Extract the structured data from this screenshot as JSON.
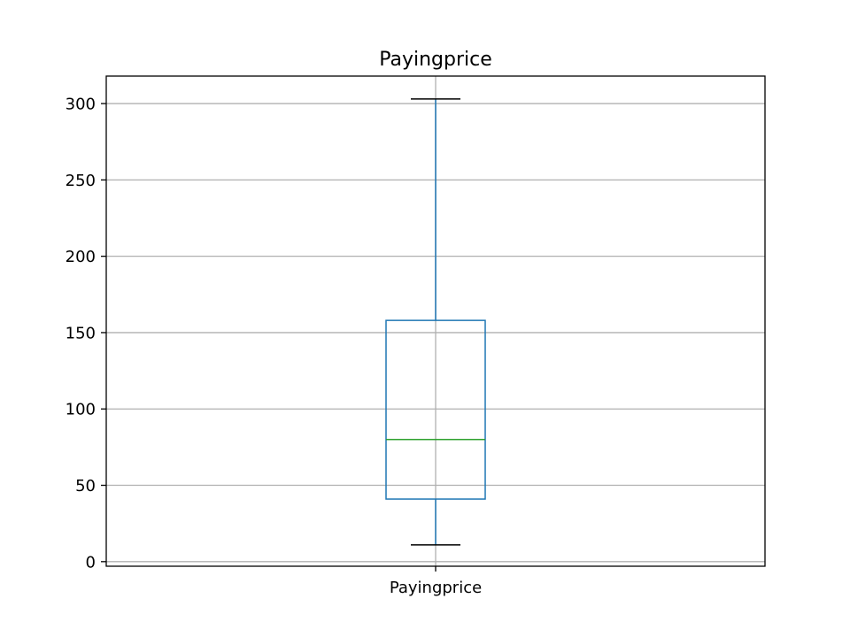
{
  "chart_data": {
    "type": "box",
    "title": "Payingprice",
    "xlabel": "",
    "ylabel": "",
    "categories": [
      "Payingprice"
    ],
    "boxes": [
      {
        "category": "Payingprice",
        "whisker_low": 11,
        "q1": 41,
        "median": 80,
        "q3": 158,
        "whisker_high": 303
      }
    ],
    "ylim": [
      -3,
      318
    ],
    "yticks": [
      0,
      50,
      100,
      150,
      200,
      250,
      300
    ],
    "grid": true,
    "colors": {
      "box": "#1f77b4",
      "median": "#2ca02c",
      "caps": "#000000",
      "grid": "#b0b0b0"
    }
  }
}
